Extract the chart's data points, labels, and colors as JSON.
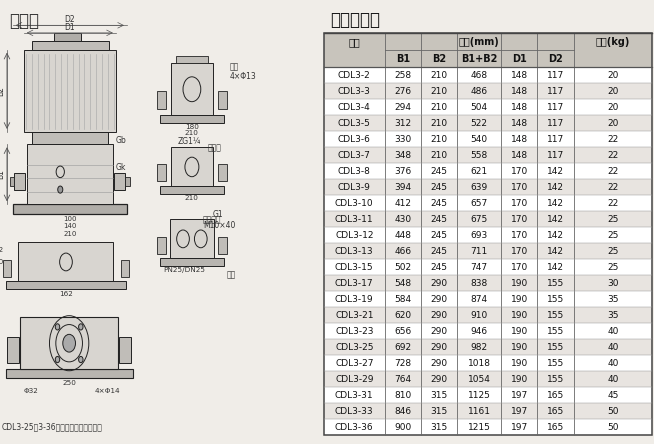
{
  "title_left": "安装图",
  "title_right": "尺寸和重量",
  "subtitle": "CDL3-25～3-36无椭圆法兰型管路联接",
  "table_data": [
    [
      "CDL3-2",
      258,
      210,
      468,
      148,
      117,
      20
    ],
    [
      "CDL3-3",
      276,
      210,
      486,
      148,
      117,
      20
    ],
    [
      "CDL3-4",
      294,
      210,
      504,
      148,
      117,
      20
    ],
    [
      "CDL3-5",
      312,
      210,
      522,
      148,
      117,
      20
    ],
    [
      "CDL3-6",
      330,
      210,
      540,
      148,
      117,
      22
    ],
    [
      "CDL3-7",
      348,
      210,
      558,
      148,
      117,
      22
    ],
    [
      "CDL3-8",
      376,
      245,
      621,
      170,
      142,
      22
    ],
    [
      "CDL3-9",
      394,
      245,
      639,
      170,
      142,
      22
    ],
    [
      "CDL3-10",
      412,
      245,
      657,
      170,
      142,
      22
    ],
    [
      "CDL3-11",
      430,
      245,
      675,
      170,
      142,
      25
    ],
    [
      "CDL3-12",
      448,
      245,
      693,
      170,
      142,
      25
    ],
    [
      "CDL3-13",
      466,
      245,
      711,
      170,
      142,
      25
    ],
    [
      "CDL3-15",
      502,
      245,
      747,
      170,
      142,
      25
    ],
    [
      "CDL3-17",
      548,
      290,
      838,
      190,
      155,
      30
    ],
    [
      "CDL3-19",
      584,
      290,
      874,
      190,
      155,
      35
    ],
    [
      "CDL3-21",
      620,
      290,
      910,
      190,
      155,
      35
    ],
    [
      "CDL3-23",
      656,
      290,
      946,
      190,
      155,
      40
    ],
    [
      "CDL3-25",
      692,
      290,
      982,
      190,
      155,
      40
    ],
    [
      "CDL3-27",
      728,
      290,
      1018,
      190,
      155,
      40
    ],
    [
      "CDL3-29",
      764,
      290,
      1054,
      190,
      155,
      40
    ],
    [
      "CDL3-31",
      810,
      315,
      1125,
      197,
      165,
      45
    ],
    [
      "CDL3-33",
      846,
      315,
      1161,
      197,
      165,
      50
    ],
    [
      "CDL3-36",
      900,
      315,
      1215,
      197,
      165,
      50
    ]
  ],
  "bg_color": "#f0ede8",
  "table_header_bg": "#c8c4bc",
  "table_row_bg1": "#ffffff",
  "table_row_bg2": "#e8e4e0",
  "border_color": "#555555",
  "text_color": "#111111",
  "font_size_title": 11,
  "font_size_table": 7,
  "font_size_drawing": 5.5
}
